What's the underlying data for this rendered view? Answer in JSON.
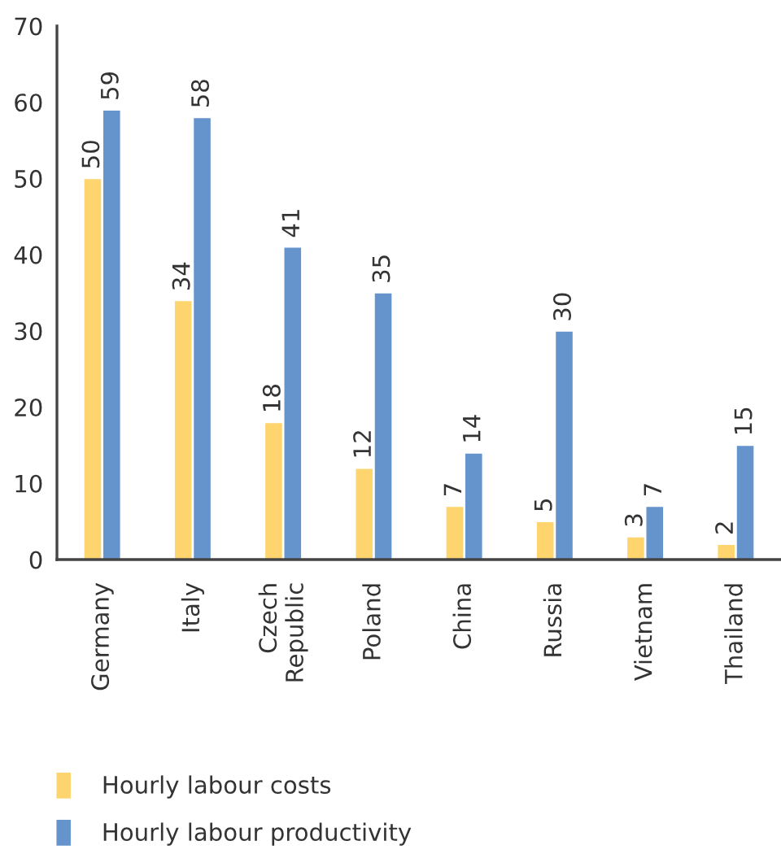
{
  "chart_data": {
    "type": "bar",
    "categories": [
      "Germany",
      "Italy",
      "Czech Republic",
      "Poland",
      "China",
      "Russia",
      "Vietnam",
      "Thailand"
    ],
    "series": [
      {
        "name": "Hourly labour costs",
        "color": "#fed46e",
        "values": [
          50,
          34,
          18,
          12,
          7,
          5,
          3,
          2
        ]
      },
      {
        "name": "Hourly labour productivity",
        "color": "#6594cd",
        "values": [
          59,
          58,
          41,
          35,
          14,
          30,
          7,
          15
        ]
      }
    ],
    "ylim": [
      0,
      70
    ],
    "yticks": [
      0,
      10,
      20,
      30,
      40,
      50,
      60,
      70
    ],
    "data_labels": true,
    "grid": false,
    "legend": "bottom"
  }
}
